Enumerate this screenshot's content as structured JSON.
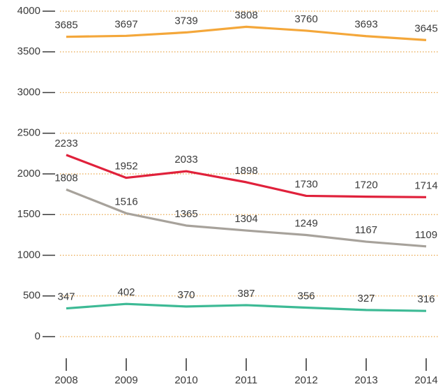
{
  "chart_data": {
    "type": "line",
    "categories": [
      "2008",
      "2009",
      "2010",
      "2011",
      "2012",
      "2013",
      "2014"
    ],
    "series": [
      {
        "color": "#f4a73a",
        "values": [
          3685,
          3697,
          3739,
          3808,
          3760,
          3693,
          3645
        ]
      },
      {
        "color": "#e0213b",
        "values": [
          2233,
          1952,
          2033,
          1898,
          1730,
          1720,
          1714
        ]
      },
      {
        "color": "#a7a29b",
        "values": [
          1808,
          1516,
          1365,
          1304,
          1249,
          1167,
          1109
        ]
      },
      {
        "color": "#3dba95",
        "values": [
          347,
          402,
          370,
          387,
          356,
          327,
          316
        ]
      }
    ],
    "ylim": [
      0,
      4000
    ],
    "yticks": [
      0,
      500,
      1000,
      1500,
      2000,
      2500,
      3000,
      3500,
      4000
    ],
    "grid": true,
    "grid_color": "#e9a649",
    "data_labels": true
  }
}
